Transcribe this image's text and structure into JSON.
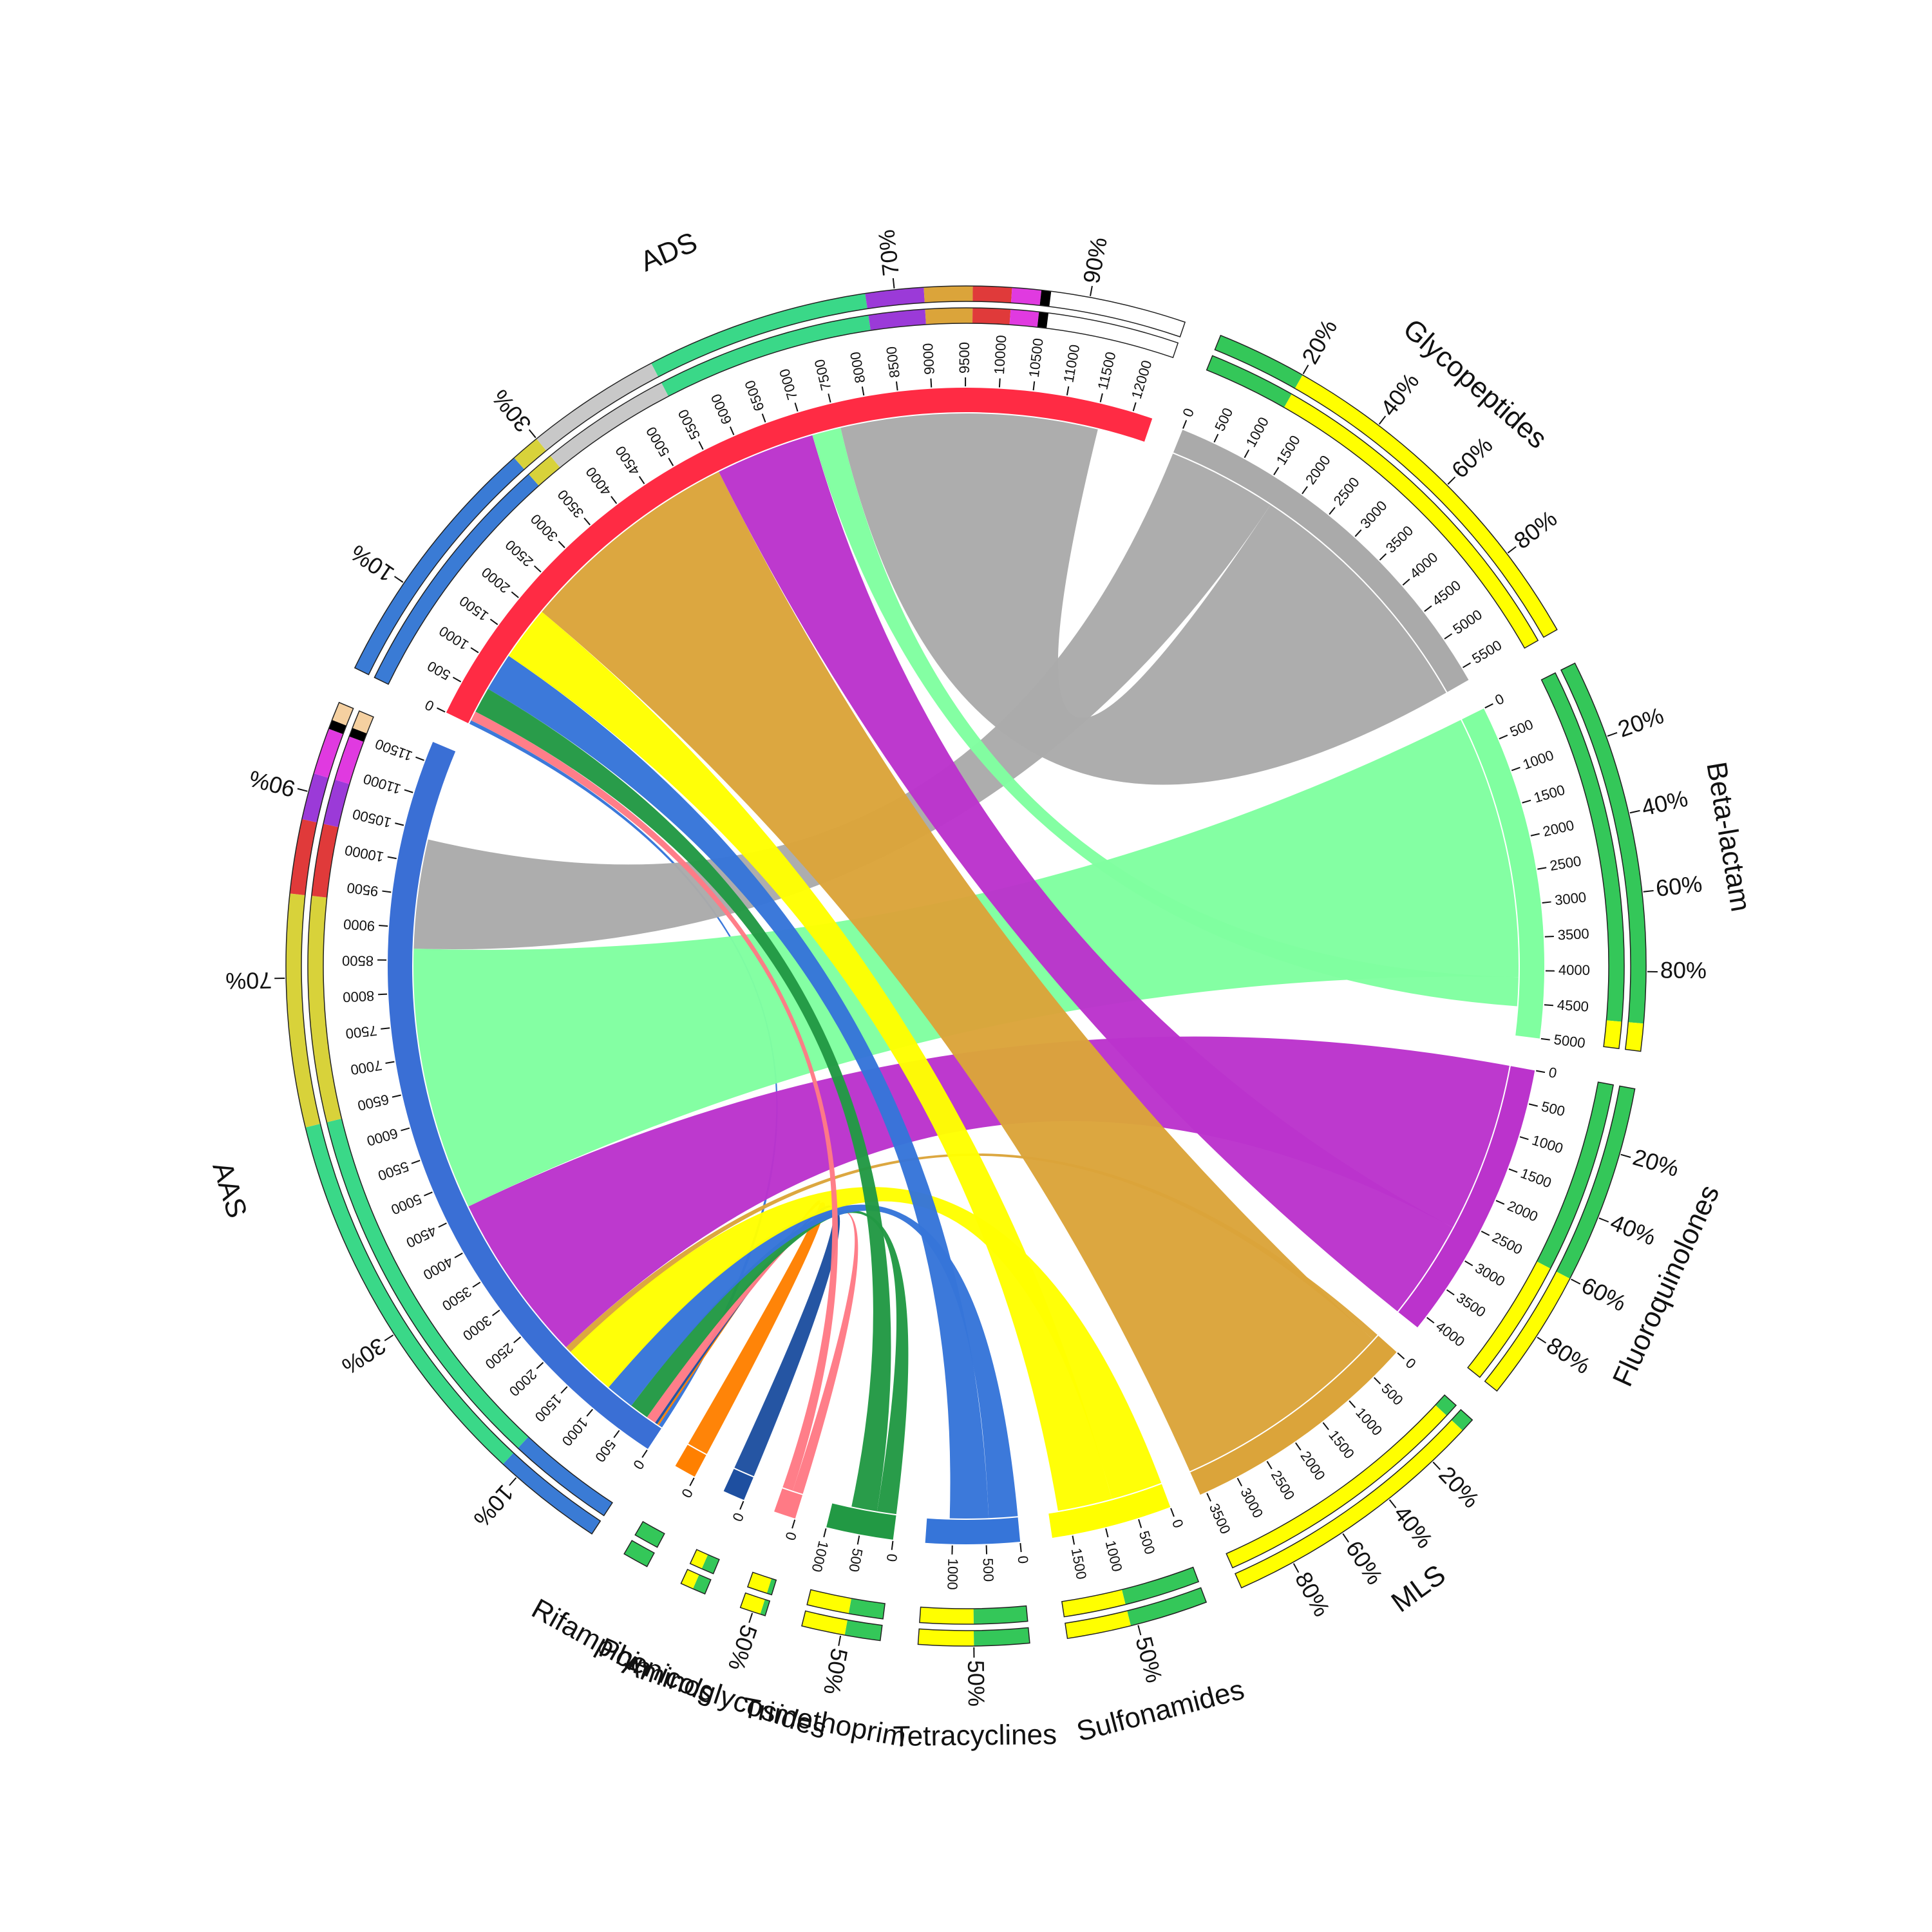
{
  "chart_data": {
    "type": "chord",
    "title": "",
    "segments": [
      {
        "name": "ADS",
        "total": 12300,
        "color": "#ff2b44",
        "tick_step": 500,
        "label_every": 500,
        "composition": [
          {
            "color": "#3a7bd5",
            "frac": 0.27
          },
          {
            "color": "#d8d23a",
            "frac": 0.03
          },
          {
            "color": "#c8c8c8",
            "frac": 0.14
          },
          {
            "color": "#3ad888",
            "frac": 0.23
          },
          {
            "color": "#9b3ad8",
            "frac": 0.06
          },
          {
            "color": "#dba43a",
            "frac": 0.05
          },
          {
            "color": "#e03a3a",
            "frac": 0.04
          },
          {
            "color": "#e03ae0",
            "frac": 0.03
          },
          {
            "color": "#000000",
            "frac": 0.01
          }
        ],
        "pct_labels": [
          "10%",
          "30%",
          "70%",
          "90%"
        ],
        "pct_positions": [
          0.1,
          0.3,
          0.7,
          0.9
        ]
      },
      {
        "name": "Glycopeptides",
        "total": 5700,
        "color": "#aaaaaa",
        "tick_step": 500,
        "label_every": 500,
        "composition": [
          {
            "color": "#34c759",
            "frac": 0.2
          },
          {
            "color": "#ffff00",
            "frac": 0.8
          }
        ],
        "pct_labels": [
          "20%",
          "40%",
          "60%",
          "80%"
        ],
        "pct_positions": [
          0.2,
          0.4,
          0.6,
          0.8
        ]
      },
      {
        "name": "Beta-lactam",
        "total": 5000,
        "color": "#80ffa0",
        "tick_step": 500,
        "label_every": 500,
        "composition": [
          {
            "color": "#34c759",
            "frac": 0.93
          },
          {
            "color": "#ffff00",
            "frac": 0.07
          }
        ],
        "pct_labels": [
          "20%",
          "40%",
          "60%",
          "80%"
        ],
        "pct_positions": [
          0.2,
          0.4,
          0.6,
          0.8
        ]
      },
      {
        "name": "Fluoroquinolones",
        "total": 4200,
        "color": "#bb33cc",
        "tick_step": 500,
        "label_every": 500,
        "composition": [
          {
            "color": "#34c759",
            "frac": 0.6
          },
          {
            "color": "#ffff00",
            "frac": 0.4
          }
        ],
        "pct_labels": [
          "20%",
          "40%",
          "60%",
          "80%"
        ],
        "pct_positions": [
          0.2,
          0.4,
          0.6,
          0.8
        ]
      },
      {
        "name": "MLS",
        "total": 3600,
        "color": "#dba43a",
        "tick_step": 500,
        "label_every": 500,
        "composition": [
          {
            "color": "#34c759",
            "frac": 0.05
          },
          {
            "color": "#ffff00",
            "frac": 0.95
          }
        ],
        "pct_labels": [
          "20%",
          "40%",
          "60%",
          "80%"
        ],
        "pct_positions": [
          0.2,
          0.4,
          0.6,
          0.8
        ]
      },
      {
        "name": "Sulfonamides",
        "total": 1800,
        "color": "#ffff00",
        "tick_step": 500,
        "label_every": 500,
        "composition": [
          {
            "color": "#34c759",
            "frac": 0.55
          },
          {
            "color": "#ffff00",
            "frac": 0.45
          }
        ],
        "pct_labels": [
          "50%"
        ],
        "pct_positions": [
          0.5
        ]
      },
      {
        "name": "Tetracyclines",
        "total": 1400,
        "color": "#3675d9",
        "tick_step": 500,
        "label_every": 500,
        "composition": [
          {
            "color": "#34c759",
            "frac": 0.5
          },
          {
            "color": "#ffff00",
            "frac": 0.5
          }
        ],
        "pct_labels": [
          "50%"
        ],
        "pct_positions": [
          0.5
        ]
      },
      {
        "name": "Trimethoprim",
        "total": 1000,
        "color": "#229944",
        "tick_step": 500,
        "label_every": 500,
        "composition": [
          {
            "color": "#34c759",
            "frac": 0.45
          },
          {
            "color": "#ffff00",
            "frac": 0.55
          }
        ],
        "pct_labels": [
          "50%"
        ],
        "pct_positions": [
          0.5
        ]
      },
      {
        "name": "Aminoglycosides",
        "total": 300,
        "color": "#ff7a85",
        "tick_step": 500,
        "label_every": 500,
        "composition": [
          {
            "color": "#34c759",
            "frac": 0.2
          },
          {
            "color": "#ffff00",
            "frac": 0.8
          }
        ],
        "pct_labels": [
          "50%"
        ],
        "pct_positions": [
          0.5
        ]
      },
      {
        "name": "Phenicols",
        "total": 40,
        "color": "#1e4fa0",
        "tick_step": 500,
        "label_every": 500,
        "composition": [
          {
            "color": "#34c759",
            "frac": 0.5
          },
          {
            "color": "#ffff00",
            "frac": 0.5
          }
        ],
        "pct_labels": [],
        "pct_positions": []
      },
      {
        "name": "Rifampicin",
        "total": 30,
        "color": "#ff8000",
        "tick_step": 500,
        "label_every": 500,
        "composition": [
          {
            "color": "#34c759",
            "frac": 1.0
          }
        ],
        "pct_labels": [],
        "pct_positions": []
      },
      {
        "name": "AAS",
        "total": 11800,
        "color": "#3a6fd5",
        "tick_step": 500,
        "label_every": 500,
        "composition": [
          {
            "color": "#3a7bd5",
            "frac": 0.12
          },
          {
            "color": "#3ad888",
            "frac": 0.42
          },
          {
            "color": "#d8d23a",
            "frac": 0.25
          },
          {
            "color": "#e03a3a",
            "frac": 0.08
          },
          {
            "color": "#9b3ad8",
            "frac": 0.05
          },
          {
            "color": "#e03ae0",
            "frac": 0.05
          },
          {
            "color": "#000000",
            "frac": 0.01
          },
          {
            "color": "#f5d0a0",
            "frac": 0.02
          }
        ],
        "pct_labels": [
          "10%",
          "30%",
          "70%",
          "90%"
        ],
        "pct_positions": [
          0.1,
          0.3,
          0.7,
          0.9
        ]
      }
    ],
    "links": [
      {
        "from": "AAS",
        "to": "ADS",
        "value": 60,
        "color": "#3675d9"
      },
      {
        "from": "AAS",
        "to": "Rifampicin",
        "value": 30,
        "color": "#ff8000"
      },
      {
        "from": "AAS",
        "to": "Phenicols",
        "value": 40,
        "color": "#1e4fa0"
      },
      {
        "from": "AAS",
        "to": "Aminoglycosides",
        "value": 150,
        "color": "#ff7a85"
      },
      {
        "from": "AAS",
        "to": "Trimethoprim",
        "value": 300,
        "color": "#229944"
      },
      {
        "from": "AAS",
        "to": "Tetracyclines",
        "value": 450,
        "color": "#3675d9"
      },
      {
        "from": "AAS",
        "to": "Sulfonamides",
        "value": 800,
        "color": "#ffff00"
      },
      {
        "from": "AAS",
        "to": "MLS",
        "value": 100,
        "color": "#dba43a"
      },
      {
        "from": "AAS",
        "to": "Fluoroquinolones",
        "value": 2650,
        "color": "#bb33cc"
      },
      {
        "from": "AAS",
        "to": "Beta-lactam",
        "value": 4100,
        "color": "#80ffa0"
      },
      {
        "from": "AAS",
        "to": "Glycopeptides",
        "value": 1700,
        "color": "#aaaaaa"
      },
      {
        "from": "ADS",
        "to": "Aminoglycosides",
        "value": 150,
        "color": "#ff7a85"
      },
      {
        "from": "ADS",
        "to": "Trimethoprim",
        "value": 400,
        "color": "#229944"
      },
      {
        "from": "ADS",
        "to": "Tetracyclines",
        "value": 600,
        "color": "#3675d9"
      },
      {
        "from": "ADS",
        "to": "Sulfonamides",
        "value": 850,
        "color": "#ffff00"
      },
      {
        "from": "ADS",
        "to": "MLS",
        "value": 3500,
        "color": "#dba43a"
      },
      {
        "from": "ADS",
        "to": "Fluoroquinolones",
        "value": 1550,
        "color": "#bb33cc"
      },
      {
        "from": "ADS",
        "to": "Beta-lactam",
        "value": 450,
        "color": "#80ffa0"
      },
      {
        "from": "ADS",
        "to": "Glycopeptides",
        "value": 4000,
        "color": "#aaaaaa"
      }
    ]
  }
}
